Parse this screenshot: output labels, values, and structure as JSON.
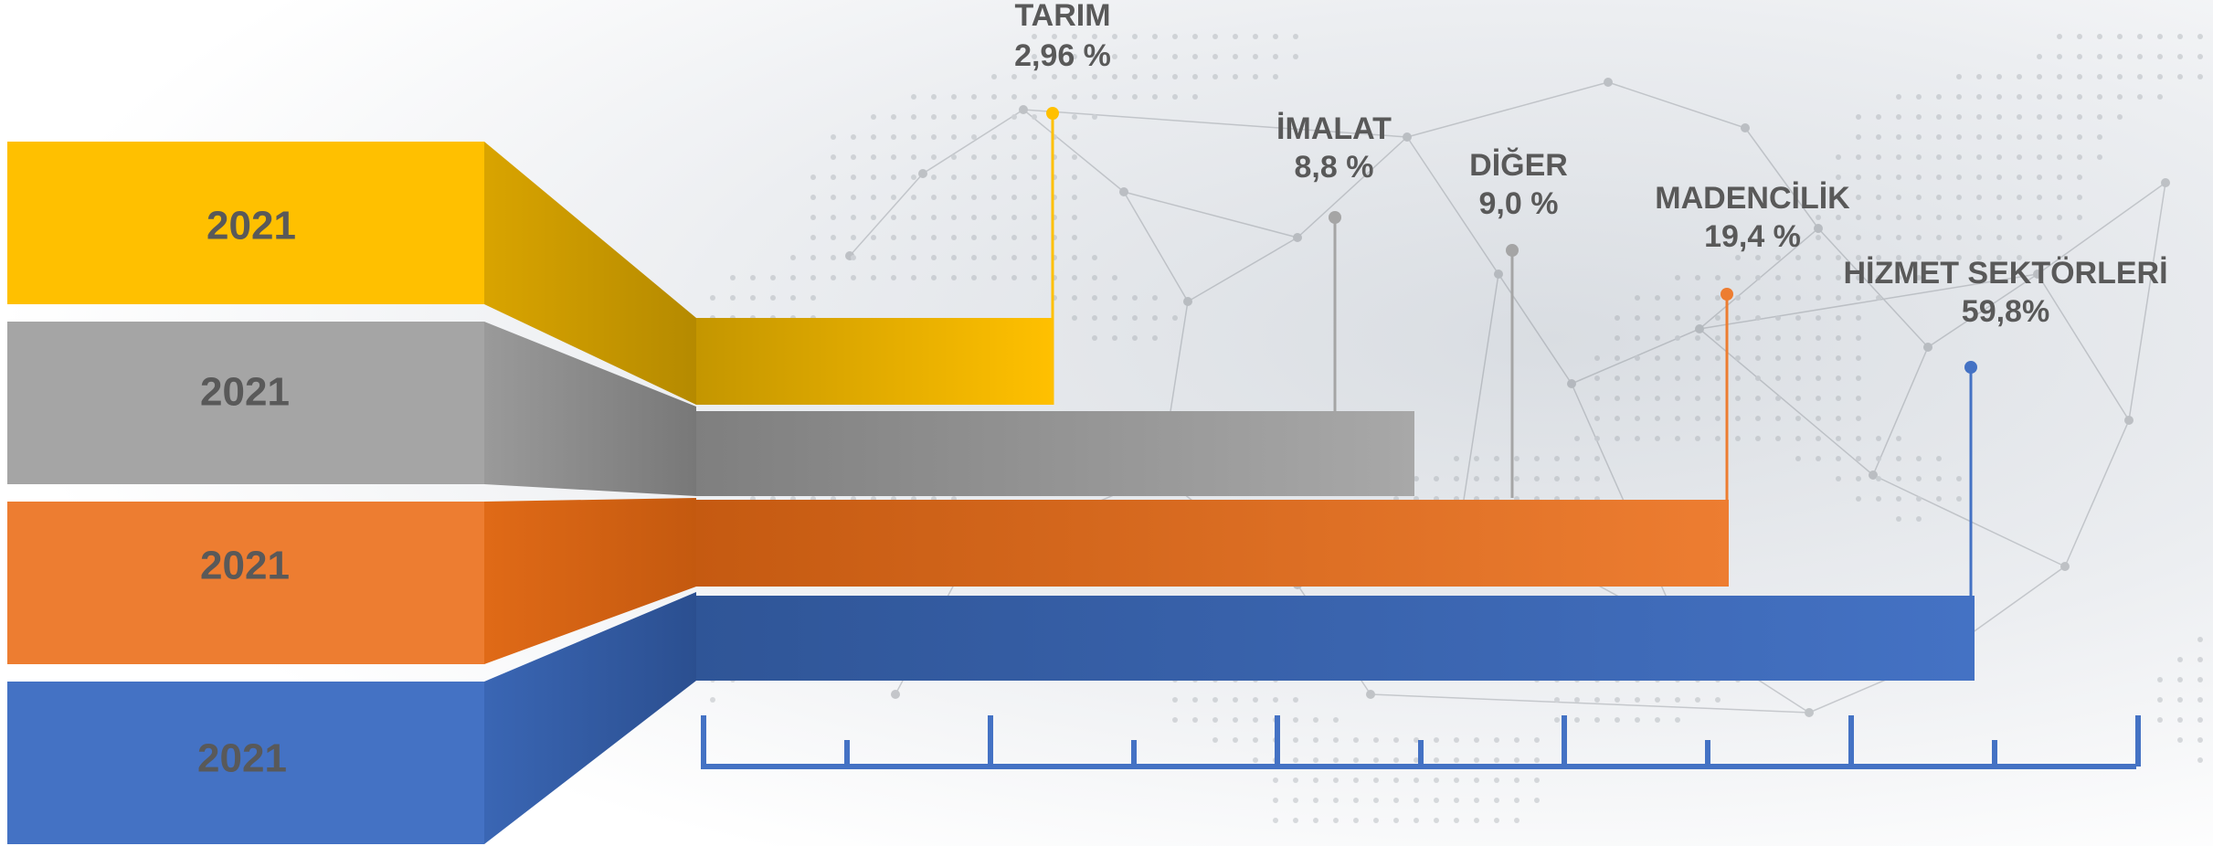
{
  "chart_data": {
    "type": "bar",
    "orientation": "horizontal",
    "categories": [
      "TARIM",
      "İMALAT",
      "DİĞER",
      "MADENCİLİK",
      "HİZMET SEKTÖRLERİ"
    ],
    "values": [
      2.96,
      8.8,
      9.0,
      19.4,
      59.8
    ],
    "value_labels": [
      "2,96 %",
      "8,8 %",
      "9,0 %",
      "19,4 %",
      "59,8%"
    ],
    "year_labels": [
      "2021",
      "2021",
      "2021",
      "2021"
    ],
    "unit": "%",
    "xlim": [
      0,
      60
    ],
    "title": "",
    "xlabel": "",
    "ylabel": "",
    "colors": {
      "TARIM": "#ffc000",
      "İMALAT": "#a5a5a5",
      "DİĞER": "#a5a5a5",
      "MADENCİLİK": "#ed7d31",
      "HİZMET SEKTÖRLERİ": "#4472c4",
      "axis": "#4472c4",
      "text": "#595959"
    }
  }
}
